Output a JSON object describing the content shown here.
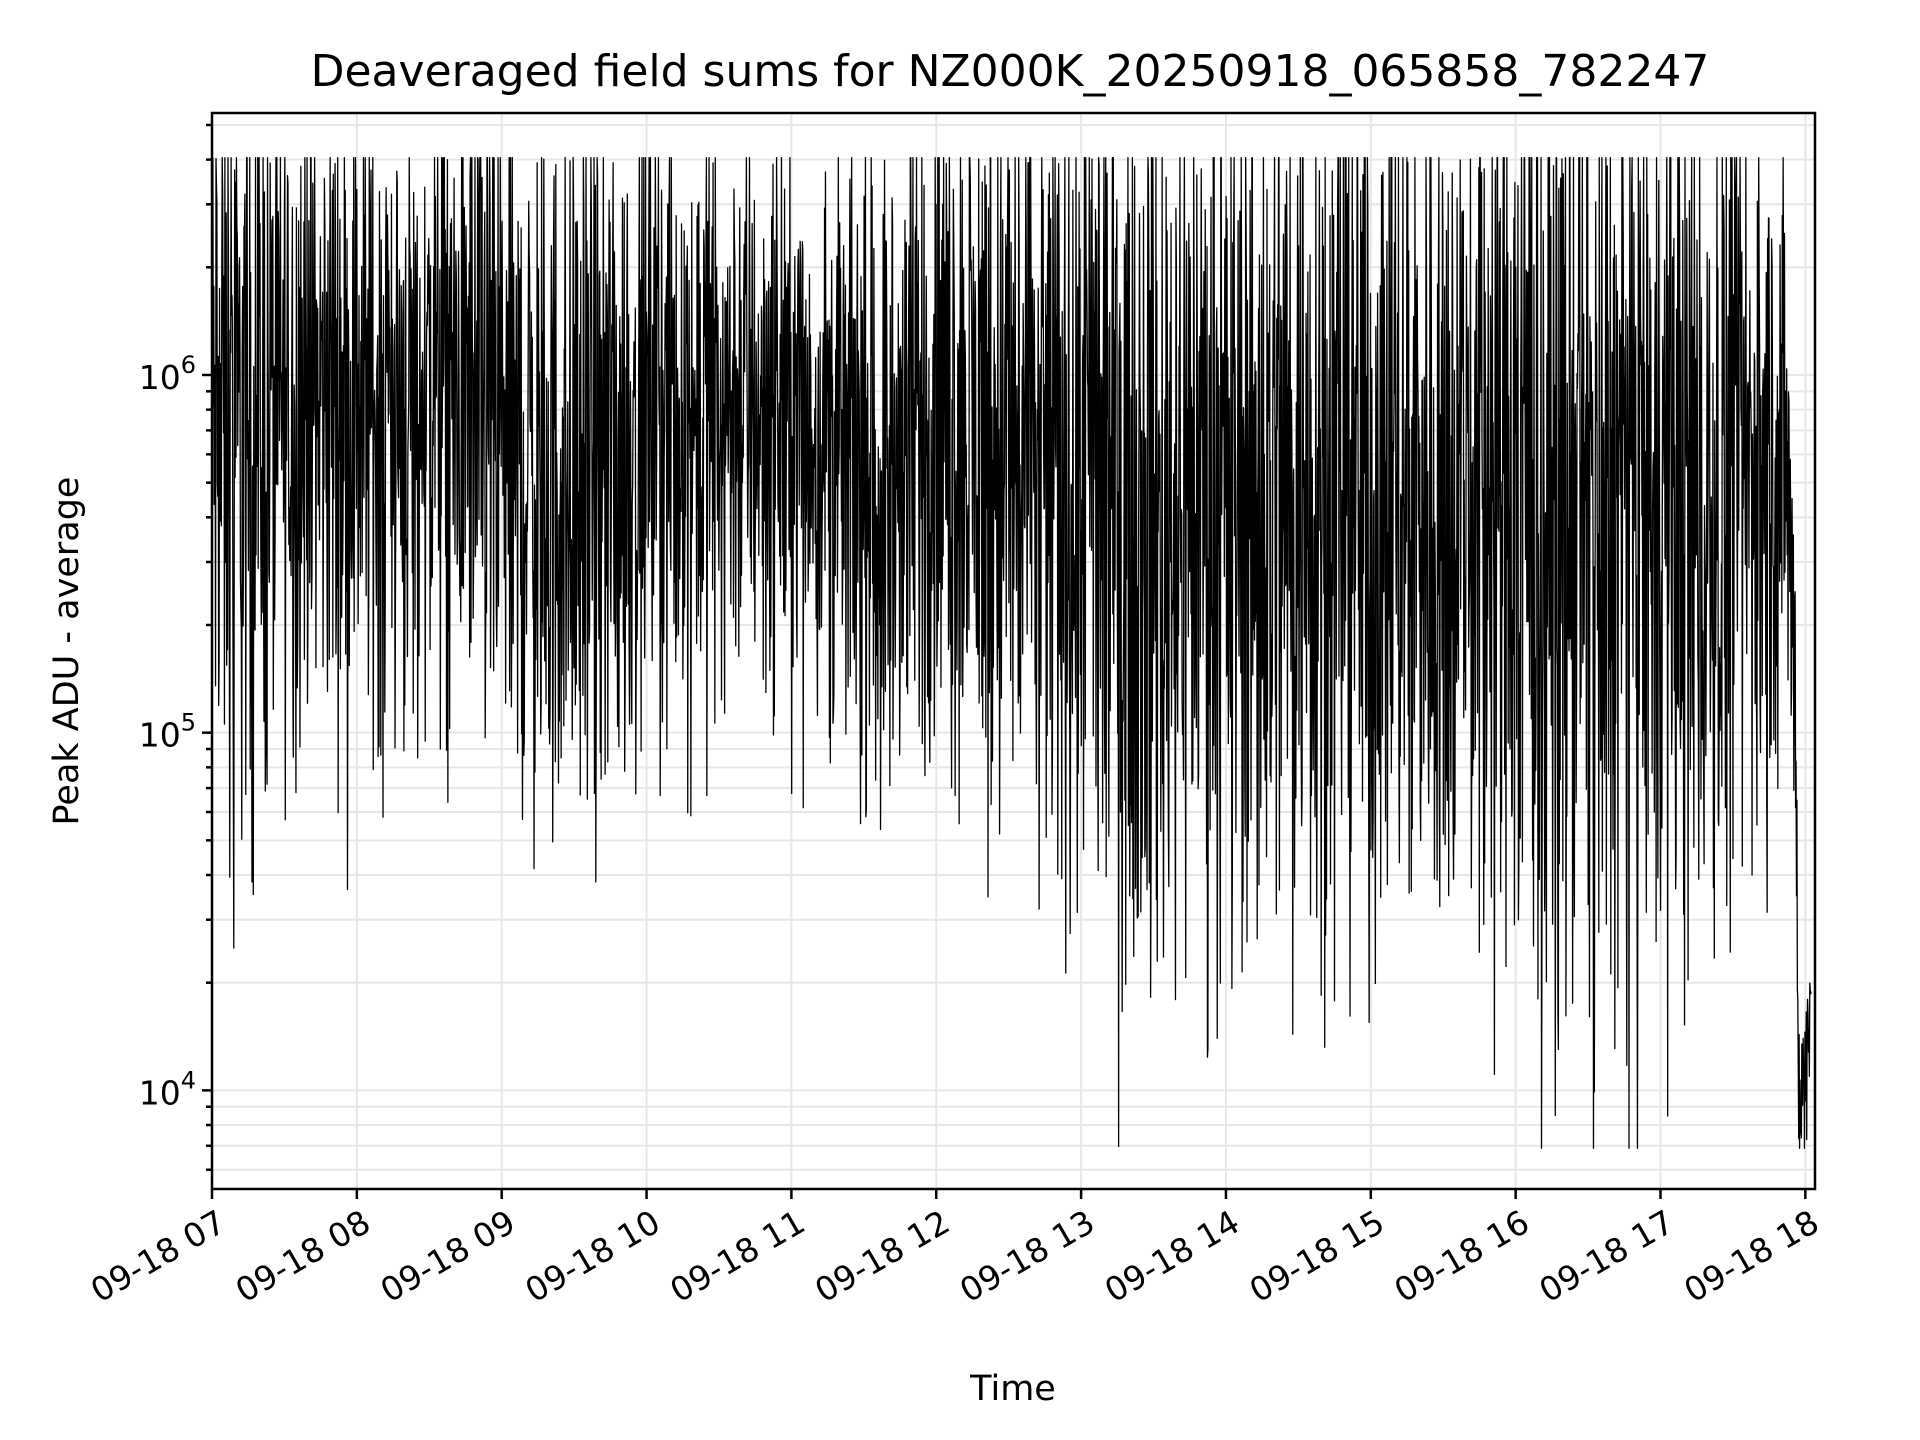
{
  "chart_data": {
    "type": "line",
    "title": "Deaveraged field sums for NZ000K_20250918_065858_782247",
    "xlabel": "Time",
    "ylabel": "Peak ADU - average",
    "y_scale": "log",
    "ylim": [
      5300,
      5400000
    ],
    "xlim": [
      "09-18 07:00",
      "09-18 18:04"
    ],
    "grid": true,
    "x_ticks": [
      "09-18 07",
      "09-18 08",
      "09-18 09",
      "09-18 10",
      "09-18 11",
      "09-18 12",
      "09-18 13",
      "09-18 14",
      "09-18 15",
      "09-18 16",
      "09-18 17",
      "09-18 18"
    ],
    "y_ticks": [
      {
        "value": 10000,
        "base": "10",
        "exp": "4"
      },
      {
        "value": 100000,
        "base": "10",
        "exp": "5"
      },
      {
        "value": 1000000,
        "base": "10",
        "exp": "6"
      }
    ],
    "series_color": "#000000",
    "envelope": {
      "description_x_unit": "hours of day",
      "x": [
        7.0,
        7.3,
        7.6,
        8.0,
        8.4,
        8.8,
        9.0,
        9.3,
        9.6,
        10.0,
        10.3,
        10.6,
        11.0,
        11.4,
        11.6,
        12.0,
        12.3,
        12.6,
        13.0,
        13.4,
        13.8,
        14.2,
        14.6,
        15.0,
        15.4,
        15.8,
        16.2,
        16.6,
        17.0,
        17.4,
        17.7,
        17.85,
        17.92,
        17.95,
        18.0,
        18.04
      ],
      "center": [
        700000,
        650000,
        900000,
        850000,
        800000,
        900000,
        650000,
        450000,
        550000,
        750000,
        800000,
        850000,
        800000,
        600000,
        450000,
        750000,
        700000,
        550000,
        550000,
        450000,
        500000,
        450000,
        550000,
        500000,
        500000,
        480000,
        450000,
        420000,
        450000,
        480000,
        550000,
        600000,
        150000,
        10000,
        12000,
        16000
      ],
      "spread": [
        0.55,
        0.55,
        0.45,
        0.45,
        0.45,
        0.45,
        0.5,
        0.5,
        0.5,
        0.45,
        0.45,
        0.4,
        0.4,
        0.4,
        0.45,
        0.5,
        0.55,
        0.6,
        0.6,
        0.65,
        0.65,
        0.65,
        0.65,
        0.65,
        0.65,
        0.7,
        0.7,
        0.7,
        0.65,
        0.6,
        0.55,
        0.4,
        0.3,
        0.15,
        0.15,
        0.12
      ]
    },
    "spikes_high": [
      {
        "x": 7.22,
        "y": 2600000
      },
      {
        "x": 7.67,
        "y": 2700000
      },
      {
        "x": 7.85,
        "y": 3900000
      },
      {
        "x": 8.0,
        "y": 3300000
      },
      {
        "x": 8.24,
        "y": 3200000
      },
      {
        "x": 8.47,
        "y": 3350000
      },
      {
        "x": 8.92,
        "y": 2900000
      },
      {
        "x": 10.15,
        "y": 2900000
      },
      {
        "x": 12.0,
        "y": 3000000
      },
      {
        "x": 13.1,
        "y": 2900000
      }
    ],
    "spikes_low": [
      {
        "x": 7.15,
        "y": 25000
      },
      {
        "x": 7.58,
        "y": 68000
      },
      {
        "x": 8.18,
        "y": 58000
      },
      {
        "x": 8.42,
        "y": 85000
      },
      {
        "x": 9.33,
        "y": 93000
      },
      {
        "x": 9.68,
        "y": 88000
      },
      {
        "x": 9.85,
        "y": 78000
      },
      {
        "x": 11.7,
        "y": 96000
      },
      {
        "x": 12.38,
        "y": 63000
      },
      {
        "x": 13.15,
        "y": 56000
      },
      {
        "x": 13.55,
        "y": 53000
      },
      {
        "x": 14.28,
        "y": 45000
      },
      {
        "x": 15.0,
        "y": 47000
      },
      {
        "x": 15.5,
        "y": 52000
      },
      {
        "x": 16.3,
        "y": 43000
      },
      {
        "x": 16.6,
        "y": 41000
      },
      {
        "x": 17.3,
        "y": 43000
      }
    ]
  }
}
